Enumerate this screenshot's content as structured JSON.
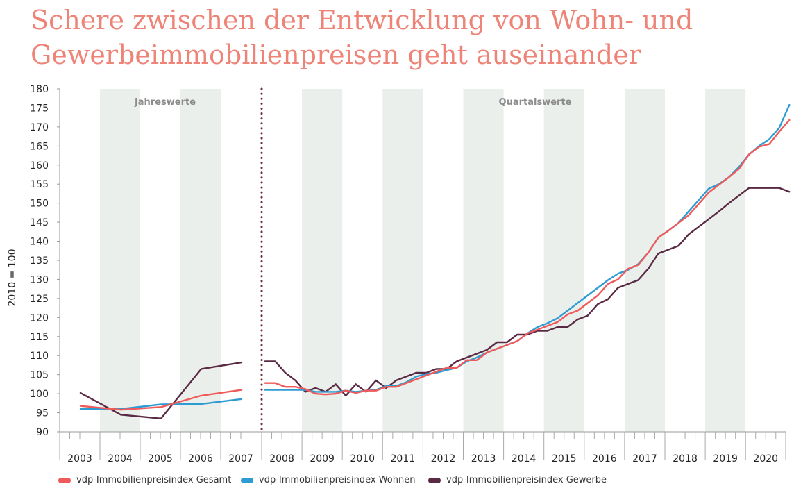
{
  "title_lines": [
    "Schere zwischen der Entwicklung von Wohn- und",
    "Gewerbeimmobilienpreisen geht auseinander"
  ],
  "colors": {
    "title": "#ee8377",
    "gesamt": "#ef5a5a",
    "wohnen": "#2e9bd3",
    "gewerbe": "#5a2a44",
    "band": "#eaefeb",
    "divider": "#6b2c3c"
  },
  "chart_data": {
    "type": "line",
    "title": "Schere zwischen der Entwicklung von Wohn- und Gewerbeimmobilienpreisen geht auseinander",
    "ylabel": "2010 = 100",
    "xlabel": "",
    "ylim": [
      90,
      180
    ],
    "yticks": [
      90,
      95,
      100,
      105,
      110,
      115,
      120,
      125,
      130,
      135,
      140,
      145,
      150,
      155,
      160,
      165,
      170,
      175,
      180
    ],
    "section_labels": [
      "Jahreswerte",
      "Quartalswerte"
    ],
    "annual_years": [
      "2003",
      "2004",
      "2005",
      "2006",
      "2007"
    ],
    "quarterly_years": [
      "2008",
      "2009",
      "2010",
      "2011",
      "2012",
      "2013",
      "2014",
      "2015",
      "2016",
      "2017",
      "2018",
      "2019",
      "2020"
    ],
    "grid": false,
    "legend_position": "bottom",
    "series": [
      {
        "name": "vdp-Immobilienpreisindex Gesamt",
        "color": "#ef5a5a",
        "annual": [
          96.8,
          95.8,
          96.5,
          99.5,
          101.0
        ],
        "quarterly": [
          102.8,
          102.8,
          101.8,
          101.8,
          101.2,
          100.0,
          99.8,
          100.0,
          100.8,
          100.2,
          100.8,
          100.8,
          101.8,
          101.8,
          102.8,
          103.8,
          104.8,
          105.8,
          106.8,
          106.8,
          108.8,
          108.8,
          110.8,
          111.8,
          112.8,
          113.8,
          115.8,
          116.8,
          117.8,
          118.8,
          120.8,
          121.8,
          123.8,
          125.8,
          128.8,
          130.0,
          132.8,
          133.8,
          137.0,
          141.0,
          142.8,
          144.8,
          146.8,
          149.8,
          152.8,
          154.8,
          156.8,
          159.0,
          162.8,
          164.8,
          165.5,
          168.8,
          171.8
        ]
      },
      {
        "name": "vdp-Immobilienpreisindex Wohnen",
        "color": "#2e9bd3",
        "annual": [
          96.0,
          96.0,
          97.2,
          97.3,
          98.6
        ],
        "quarterly": [
          101.0,
          101.0,
          101.0,
          101.0,
          101.0,
          100.5,
          100.5,
          100.5,
          100.8,
          100.5,
          100.8,
          101.0,
          102.0,
          102.0,
          103.0,
          104.5,
          105.2,
          105.5,
          106.2,
          106.8,
          108.5,
          109.5,
          110.8,
          111.8,
          112.8,
          113.8,
          115.8,
          117.5,
          118.5,
          119.8,
          121.8,
          123.8,
          125.8,
          127.8,
          129.8,
          131.5,
          132.5,
          134.0,
          137.0,
          141.0,
          142.8,
          144.8,
          147.8,
          150.8,
          153.8,
          155.0,
          156.8,
          159.5,
          162.8,
          165.0,
          166.8,
          169.8,
          175.8
        ]
      },
      {
        "name": "vdp-Immobilienpreisindex Gewerbe",
        "color": "#5a2a44",
        "annual": [
          100.2,
          94.5,
          93.5,
          106.5,
          108.2
        ],
        "quarterly": [
          108.5,
          108.5,
          105.5,
          103.5,
          100.5,
          101.5,
          100.5,
          102.5,
          99.5,
          102.5,
          100.5,
          103.5,
          101.5,
          103.5,
          104.5,
          105.5,
          105.5,
          106.5,
          106.5,
          108.5,
          109.5,
          110.5,
          111.5,
          113.5,
          113.5,
          115.5,
          115.5,
          116.5,
          116.5,
          117.5,
          117.5,
          119.5,
          120.5,
          123.5,
          124.8,
          127.8,
          128.8,
          129.8,
          132.8,
          136.8,
          137.8,
          138.8,
          141.8,
          143.8,
          145.8,
          147.8,
          150.0,
          152.0,
          154.0,
          154.0,
          154.0,
          154.0,
          153.0
        ]
      }
    ]
  }
}
